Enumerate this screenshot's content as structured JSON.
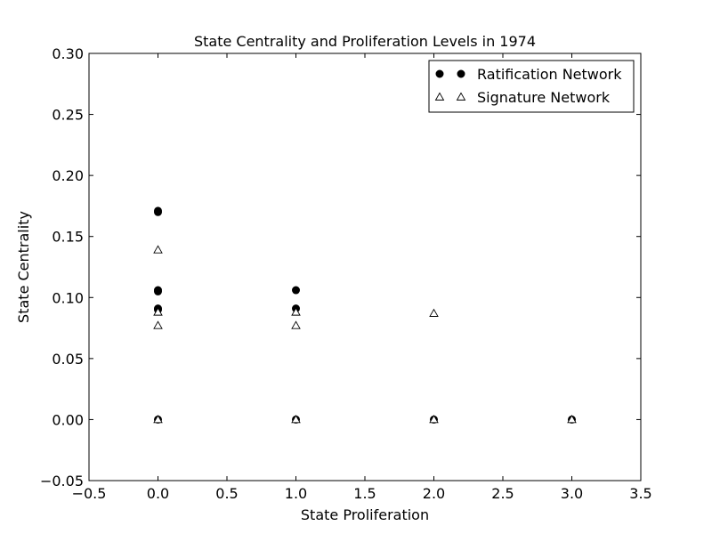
{
  "chart_data": {
    "type": "scatter",
    "title": "State Centrality and Proliferation Levels in 1974",
    "xlabel": "State Proliferation",
    "ylabel": "State Centrality",
    "xlim": [
      -0.5,
      3.5
    ],
    "ylim": [
      -0.05,
      0.3
    ],
    "xticks": [
      -0.5,
      0.0,
      0.5,
      1.0,
      1.5,
      2.0,
      2.5,
      3.0,
      3.5
    ],
    "xtick_labels": [
      "−0.5",
      "0.0",
      "0.5",
      "1.0",
      "1.5",
      "2.0",
      "2.5",
      "3.0",
      "3.5"
    ],
    "yticks": [
      -0.05,
      0.0,
      0.05,
      0.1,
      0.15,
      0.2,
      0.25,
      0.3
    ],
    "ytick_labels": [
      "−0.05",
      "0.00",
      "0.05",
      "0.10",
      "0.15",
      "0.20",
      "0.25",
      "0.30"
    ],
    "grid": false,
    "legend_position": "top-right",
    "series": [
      {
        "name": "Ratification Network",
        "marker": "circle-filled",
        "color": "#000000",
        "points": [
          {
            "x": 0,
            "y": 0.171
          },
          {
            "x": 0,
            "y": 0.17
          },
          {
            "x": 0,
            "y": 0.106
          },
          {
            "x": 0,
            "y": 0.105
          },
          {
            "x": 0,
            "y": 0.091
          },
          {
            "x": 0,
            "y": 0.09
          },
          {
            "x": 0,
            "y": 0.0
          },
          {
            "x": 1,
            "y": 0.106
          },
          {
            "x": 1,
            "y": 0.091
          },
          {
            "x": 1,
            "y": 0.0
          },
          {
            "x": 2,
            "y": 0.0
          },
          {
            "x": 3,
            "y": 0.0
          }
        ]
      },
      {
        "name": "Signature Network",
        "marker": "triangle-open",
        "color": "#000000",
        "points": [
          {
            "x": 0,
            "y": 0.139
          },
          {
            "x": 0,
            "y": 0.088
          },
          {
            "x": 0,
            "y": 0.077
          },
          {
            "x": 0,
            "y": 0.0
          },
          {
            "x": 1,
            "y": 0.088
          },
          {
            "x": 1,
            "y": 0.077
          },
          {
            "x": 1,
            "y": 0.0
          },
          {
            "x": 2,
            "y": 0.087
          },
          {
            "x": 2,
            "y": 0.0
          },
          {
            "x": 3,
            "y": 0.0
          }
        ]
      }
    ]
  }
}
